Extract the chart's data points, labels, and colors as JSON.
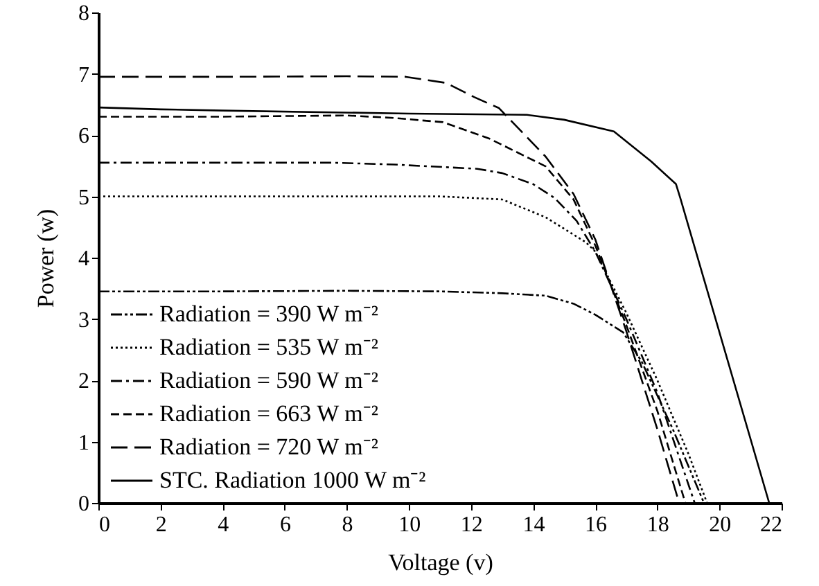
{
  "chart_data": {
    "type": "line",
    "xlabel": "Voltage (v)",
    "ylabel": "Power (w)",
    "xlim": [
      0,
      22
    ],
    "ylim": [
      0,
      8
    ],
    "xticks": [
      0,
      2,
      4,
      6,
      8,
      10,
      12,
      14,
      16,
      18,
      20,
      22
    ],
    "yticks": [
      0,
      1,
      2,
      3,
      4,
      5,
      6,
      7,
      8
    ],
    "grid": false,
    "legend": "bottom left",
    "marker": "none",
    "series": [
      {
        "name": "Radiation = 390 W m⁻²",
        "color": "#000000",
        "line_style": "dashdotdot",
        "x": [
          0,
          4,
          8,
          11,
          13,
          14.4,
          15.3,
          16,
          16.9,
          17.5,
          18.5,
          19.5
        ],
        "values": [
          3.45,
          3.45,
          3.46,
          3.45,
          3.42,
          3.38,
          3.25,
          3.07,
          2.78,
          2.3,
          1.2,
          0
        ]
      },
      {
        "name": "Radiation = 535 W m⁻²",
        "color": "#000000",
        "line_style": "dotted",
        "x": [
          0,
          4,
          8,
          11,
          13,
          14.4,
          15.7,
          16,
          17,
          18,
          19,
          19.6
        ],
        "values": [
          5,
          5,
          5,
          5,
          4.95,
          4.66,
          4.25,
          4.1,
          3.1,
          2,
          0.8,
          0
        ]
      },
      {
        "name": "Radiation = 590 W m⁻²",
        "color": "#000000",
        "line_style": "dashdot",
        "x": [
          0,
          4,
          7.5,
          9.5,
          12.2,
          13,
          14,
          14.7,
          15.4,
          16,
          17,
          18,
          19.2
        ],
        "values": [
          5.55,
          5.55,
          5.55,
          5.52,
          5.45,
          5.38,
          5.2,
          4.97,
          4.6,
          4.1,
          3,
          1.8,
          0
        ]
      },
      {
        "name": "Radiation = 663 W m⁻²",
        "color": "#000000",
        "line_style": "dashed",
        "x": [
          0,
          4,
          8,
          9.5,
          11.1,
          12.6,
          14.4,
          15.3,
          16,
          17,
          18,
          18.9
        ],
        "values": [
          6.3,
          6.3,
          6.32,
          6.28,
          6.21,
          5.94,
          5.49,
          4.95,
          4.2,
          2.9,
          1.5,
          0
        ]
      },
      {
        "name": "Radiation = 720 W m⁻²",
        "color": "#000000",
        "line_style": "longdash",
        "x": [
          0,
          4,
          8,
          9.9,
          11.2,
          12.1,
          12.9,
          14.4,
          15.3,
          16,
          17,
          18,
          18.7
        ],
        "values": [
          6.95,
          6.95,
          6.96,
          6.95,
          6.85,
          6.62,
          6.44,
          5.65,
          5.04,
          4.3,
          2.8,
          1.2,
          0
        ]
      },
      {
        "name": "STC. Radiation 1000 W m⁻²",
        "color": "#000000",
        "line_style": "solid",
        "x": [
          0,
          2,
          4,
          10,
          13.8,
          15,
          16.6,
          17.8,
          18.6,
          18.74,
          21.6
        ],
        "values": [
          6.45,
          6.42,
          6.4,
          6.35,
          6.33,
          6.25,
          6.06,
          5.57,
          5.2,
          4.97,
          0
        ]
      }
    ]
  }
}
